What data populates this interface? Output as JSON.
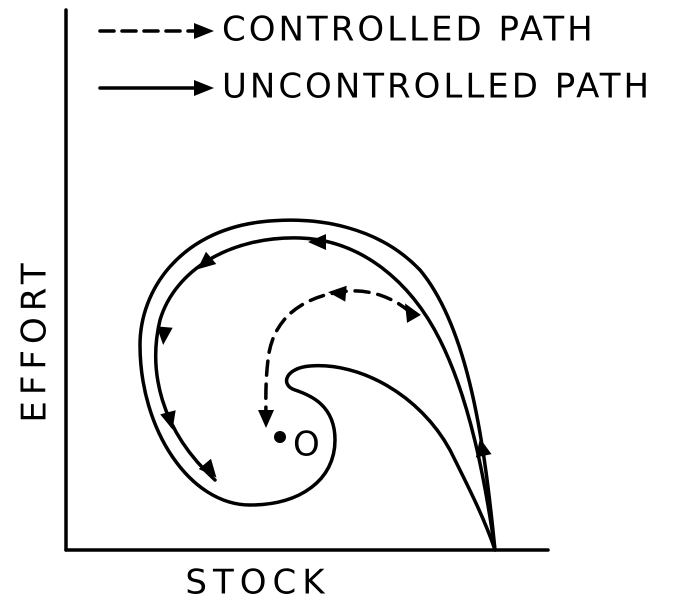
{
  "legend": [
    "CONTROLLED PATH",
    "UNCONTROLLED PATH"
  ],
  "axes": {
    "x_label": "STOCK",
    "y_label": "EFFORT"
  },
  "point_label": "O"
}
